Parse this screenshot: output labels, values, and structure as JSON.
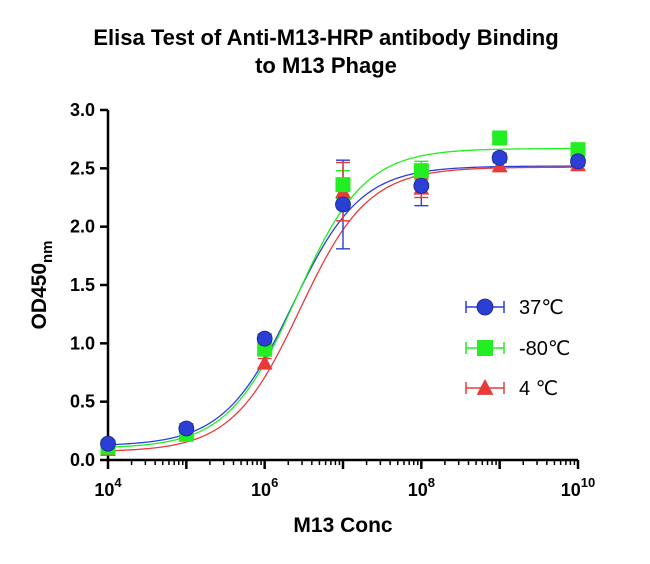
{
  "chart_data": {
    "type": "scatter",
    "title_lines": [
      "Elisa Test of Anti-M13-HRP antibody Binding",
      "to M13 Phage"
    ],
    "xlabel": "M13 Conc",
    "ylabel": {
      "main": "OD450",
      "sub": "nm"
    },
    "x_scale": "log10",
    "xlim": [
      10000,
      10000000000
    ],
    "ylim": [
      0,
      3.0
    ],
    "x_ticks": [
      {
        "value": 10000,
        "base": "10",
        "exp": "4"
      },
      {
        "value": 1000000,
        "base": "10",
        "exp": "6"
      },
      {
        "value": 100000000,
        "base": "10",
        "exp": "8"
      },
      {
        "value": 10000000000,
        "base": "10",
        "exp": "10"
      }
    ],
    "y_ticks": [
      "0.0",
      "0.5",
      "1.0",
      "1.5",
      "2.0",
      "2.5",
      "3.0"
    ],
    "grid": false,
    "legend_position": "right",
    "series": [
      {
        "name": "37℃",
        "marker": "circle",
        "color": "#2b3fd6",
        "points": [
          {
            "x": 10000,
            "y": 0.14,
            "err": 0.03
          },
          {
            "x": 100000,
            "y": 0.27,
            "err": 0.04
          },
          {
            "x": 1000000,
            "y": 1.04,
            "err": 0.04
          },
          {
            "x": 10000000,
            "y": 2.19,
            "err": 0.38
          },
          {
            "x": 100000000,
            "y": 2.35,
            "err": 0.17
          },
          {
            "x": 1000000000,
            "y": 2.59,
            "err": 0.04
          },
          {
            "x": 10000000000,
            "y": 2.56,
            "err": 0.04
          }
        ],
        "fit": {
          "bottom": 0.12,
          "top": 2.52,
          "ec50_log": 6.35,
          "hill": 1.0
        }
      },
      {
        "name": "-80℃",
        "marker": "square",
        "color": "#22ee22",
        "points": [
          {
            "x": 10000,
            "y": 0.11,
            "err": 0.02
          },
          {
            "x": 100000,
            "y": 0.22,
            "err": 0.03
          },
          {
            "x": 1000000,
            "y": 0.95,
            "err": 0.04
          },
          {
            "x": 10000000,
            "y": 2.36,
            "err": 0.12
          },
          {
            "x": 100000000,
            "y": 2.48,
            "err": 0.08
          },
          {
            "x": 1000000000,
            "y": 2.76,
            "err": 0.04
          },
          {
            "x": 10000000000,
            "y": 2.66,
            "err": 0.04
          }
        ],
        "fit": {
          "bottom": 0.1,
          "top": 2.67,
          "ec50_log": 6.4,
          "hill": 1.0
        }
      },
      {
        "name": "4 ℃",
        "marker": "triangle",
        "color": "#e83a3a",
        "points": [
          {
            "x": 10000,
            "y": 0.09,
            "err": 0.02
          },
          {
            "x": 100000,
            "y": 0.24,
            "err": 0.03
          },
          {
            "x": 1000000,
            "y": 0.83,
            "err": 0.04
          },
          {
            "x": 10000000,
            "y": 2.3,
            "err": 0.25
          },
          {
            "x": 100000000,
            "y": 2.33,
            "err": 0.08
          },
          {
            "x": 1000000000,
            "y": 2.52,
            "err": 0.04
          },
          {
            "x": 10000000000,
            "y": 2.53,
            "err": 0.04
          }
        ],
        "fit": {
          "bottom": 0.07,
          "top": 2.51,
          "ec50_log": 6.45,
          "hill": 1.0
        }
      }
    ]
  }
}
